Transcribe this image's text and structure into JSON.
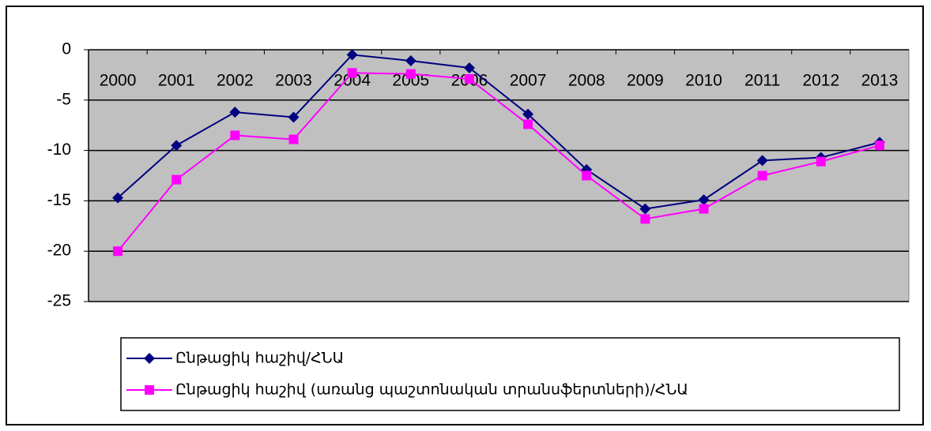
{
  "chart_data": {
    "type": "line",
    "categories": [
      "2000",
      "2001",
      "2002",
      "2003",
      "2004",
      "2005",
      "2006",
      "2007",
      "2008",
      "2009",
      "2010",
      "2011",
      "2012",
      "2013"
    ],
    "series": [
      {
        "name": "Ընթացիկ հաշիվ/ՀՆԱ",
        "color": "#000080",
        "marker": "diamond",
        "values": [
          -14.7,
          -9.5,
          -6.2,
          -6.7,
          -0.5,
          -1.1,
          -1.8,
          -6.4,
          -11.9,
          -15.8,
          -14.9,
          -11.0,
          -10.7,
          -9.2
        ]
      },
      {
        "name": "Ընթացիկ հաշիվ (առանց պաշտոնական տրանսֆերտների)/ՀՆԱ",
        "color": "#ff00ff",
        "marker": "square",
        "values": [
          -20.0,
          -12.9,
          -8.5,
          -8.9,
          -2.3,
          -2.4,
          -2.9,
          -7.4,
          -12.5,
          -16.8,
          -15.8,
          -12.5,
          -11.1,
          -9.5
        ]
      }
    ],
    "ylim": [
      -25,
      0
    ],
    "yticks": [
      0,
      -5,
      -10,
      -15,
      -20,
      -25
    ],
    "grid": true,
    "legend": "bottom"
  }
}
